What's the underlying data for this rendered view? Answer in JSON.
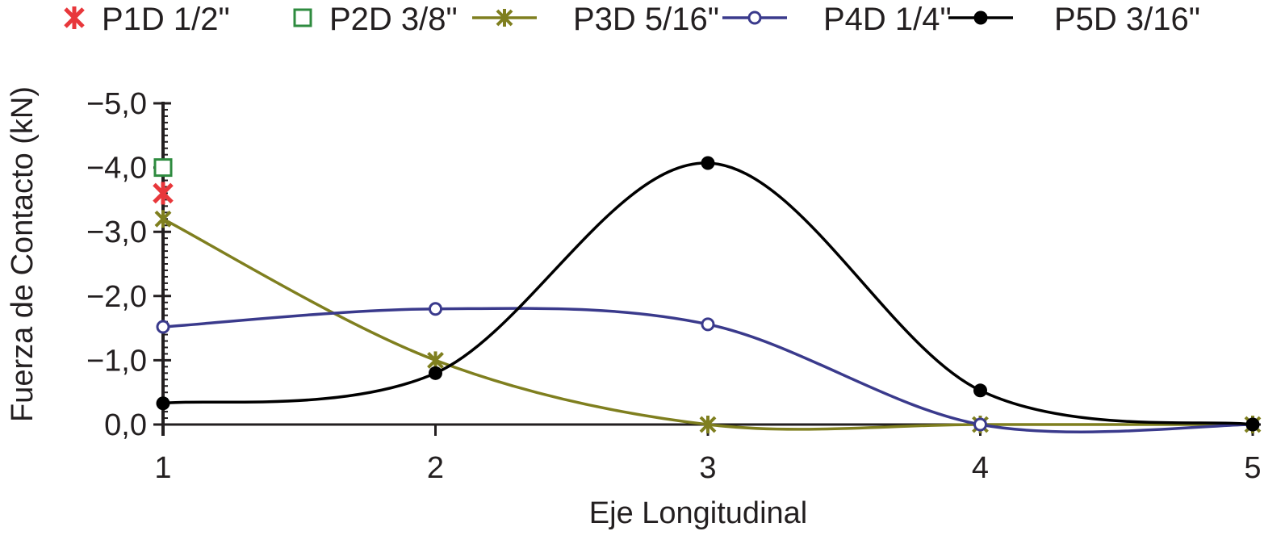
{
  "chart_data": {
    "type": "line",
    "xlabel": "Eje Longitudinal",
    "ylabel": "Fuerza de Contacto (kN)",
    "x_ticks": [
      "1",
      "2",
      "3",
      "4",
      "5"
    ],
    "y_ticks": [
      "0,0",
      "−1,0",
      "−2,0",
      "−3,0",
      "−4,0",
      "−5,0"
    ],
    "xlim": [
      1,
      5
    ],
    "ylim": [
      0,
      -5
    ],
    "y_axis_inverted": true,
    "grid": false,
    "legend_position": "top",
    "series": [
      {
        "name": "P1D 1/2\"",
        "color": "#e8373b",
        "marker": "x-cross",
        "line": false,
        "x": [
          1
        ],
        "y": [
          -3.6
        ]
      },
      {
        "name": "P2D 3/8\"",
        "color": "#2e8b3f",
        "marker": "open-square",
        "line": false,
        "x": [
          1
        ],
        "y": [
          -4.0
        ]
      },
      {
        "name": "P3D 5/16\"",
        "color": "#7f7f1f",
        "marker": "asterisk",
        "line": true,
        "x": [
          1,
          2,
          3,
          4,
          5
        ],
        "y": [
          -3.2,
          -1.0,
          0.0,
          0.0,
          0.0
        ]
      },
      {
        "name": "P4D 1/4\"",
        "color": "#3a3a8c",
        "marker": "open-circle",
        "line": true,
        "x": [
          1,
          2,
          3,
          4,
          5
        ],
        "y": [
          -1.52,
          -1.8,
          -1.56,
          0.0,
          0.0
        ]
      },
      {
        "name": "P5D 3/16\"",
        "color": "#000000",
        "marker": "filled-circle",
        "line": true,
        "x": [
          1,
          2,
          3,
          4,
          5
        ],
        "y": [
          -0.33,
          -0.8,
          -4.07,
          -0.53,
          0.0
        ]
      }
    ]
  }
}
